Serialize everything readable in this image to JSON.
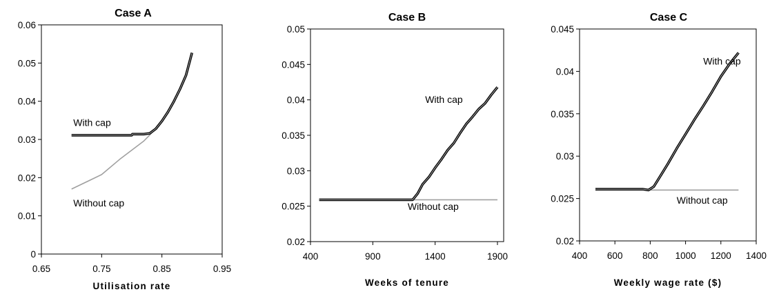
{
  "chart_data": [
    {
      "type": "line",
      "title": "Case A",
      "xlabel": "Utilisation rate",
      "ylabel": "",
      "xlim": [
        0.65,
        0.95
      ],
      "ylim": [
        0,
        0.06
      ],
      "xticks": [
        0.65,
        0.75,
        0.85,
        0.95
      ],
      "yticks": [
        0,
        0.01,
        0.02,
        0.03,
        0.04,
        0.05,
        0.06
      ],
      "xtick_labels": [
        "0.65",
        "0.75",
        "0.85",
        "0.95"
      ],
      "ytick_labels": [
        "0",
        "0.01",
        "0.02",
        "0.03",
        "0.04",
        "0.05",
        "0.06"
      ],
      "grid": false,
      "series": [
        {
          "name": "With cap",
          "color": "#000000",
          "x": [
            0.7,
            0.72,
            0.74,
            0.76,
            0.78,
            0.8,
            0.801,
            0.81,
            0.82,
            0.83,
            0.84,
            0.85,
            0.86,
            0.87,
            0.88,
            0.89,
            0.9
          ],
          "y": [
            0.0311,
            0.0311,
            0.0311,
            0.0311,
            0.0311,
            0.0311,
            0.0314,
            0.0314,
            0.0314,
            0.0316,
            0.0328,
            0.0348,
            0.0372,
            0.04,
            0.0432,
            0.0468,
            0.0527
          ]
        },
        {
          "name": "Without cap",
          "color": "#999999",
          "x": [
            0.7,
            0.75,
            0.78,
            0.8,
            0.82,
            0.83,
            0.84,
            0.85,
            0.86,
            0.87,
            0.88,
            0.89,
            0.9
          ],
          "y": [
            0.017,
            0.0208,
            0.0248,
            0.0272,
            0.0296,
            0.0312,
            0.033,
            0.035,
            0.0375,
            0.0402,
            0.0433,
            0.047,
            0.0527
          ]
        }
      ],
      "annotations": [
        {
          "text": "With cap",
          "x": 0.703,
          "y": 0.0335
        },
        {
          "text": "Without cap",
          "x": 0.703,
          "y": 0.0125
        }
      ]
    },
    {
      "type": "line",
      "title": "Case B",
      "xlabel": "Weeks of tenure",
      "ylabel": "",
      "xlim": [
        400,
        1950
      ],
      "ylim": [
        0.02,
        0.05
      ],
      "xticks": [
        400,
        900,
        1400,
        1900
      ],
      "yticks": [
        0.02,
        0.025,
        0.03,
        0.035,
        0.04,
        0.045,
        0.05
      ],
      "xtick_labels": [
        "400",
        "900",
        "1400",
        "1900"
      ],
      "ytick_labels": [
        "0.02",
        "0.025",
        "0.03",
        "0.035",
        "0.04",
        "0.045",
        "0.05"
      ],
      "grid": false,
      "series": [
        {
          "name": "With cap",
          "color": "#000000",
          "x": [
            470,
            700,
            900,
            1100,
            1220,
            1260,
            1300,
            1350,
            1400,
            1450,
            1500,
            1550,
            1600,
            1650,
            1700,
            1750,
            1800,
            1850,
            1900
          ],
          "y": [
            0.0259,
            0.0259,
            0.0259,
            0.0259,
            0.0259,
            0.0268,
            0.0281,
            0.0291,
            0.0304,
            0.0316,
            0.0329,
            0.0339,
            0.0353,
            0.0366,
            0.0376,
            0.0387,
            0.0395,
            0.0407,
            0.0418
          ]
        },
        {
          "name": "Without cap",
          "color": "#999999",
          "x": [
            470,
            1900
          ],
          "y": [
            0.0259,
            0.0259
          ]
        }
      ],
      "annotations": [
        {
          "text": "With cap",
          "x": 1320,
          "y": 0.0396
        },
        {
          "text": "Without cap",
          "x": 1180,
          "y": 0.0245
        }
      ]
    },
    {
      "type": "line",
      "title": "Case C",
      "xlabel": "Weekly wage rate ($)",
      "ylabel": "",
      "xlim": [
        400,
        1400
      ],
      "ylim": [
        0.02,
        0.045
      ],
      "xticks": [
        400,
        600,
        800,
        1000,
        1200,
        1400
      ],
      "yticks": [
        0.02,
        0.025,
        0.03,
        0.035,
        0.04,
        0.045
      ],
      "xtick_labels": [
        "400",
        "600",
        "800",
        "1000",
        "1200",
        "1400"
      ],
      "ytick_labels": [
        "0.02",
        "0.025",
        "0.03",
        "0.035",
        "0.04",
        "0.045"
      ],
      "grid": false,
      "series": [
        {
          "name": "With cap",
          "color": "#000000",
          "x": [
            490,
            600,
            700,
            760,
            790,
            820,
            850,
            900,
            950,
            1000,
            1050,
            1100,
            1150,
            1200,
            1250,
            1300
          ],
          "y": [
            0.0261,
            0.0261,
            0.0261,
            0.0261,
            0.026,
            0.0264,
            0.0274,
            0.0291,
            0.0309,
            0.0326,
            0.0343,
            0.0359,
            0.0376,
            0.0394,
            0.0409,
            0.0422
          ]
        },
        {
          "name": "Without cap",
          "color": "#999999",
          "x": [
            490,
            1300
          ],
          "y": [
            0.026,
            0.026
          ]
        }
      ],
      "annotations": [
        {
          "text": "With cap",
          "x": 1100,
          "y": 0.0408
        },
        {
          "text": "Without cap",
          "x": 950,
          "y": 0.0244
        }
      ]
    }
  ]
}
